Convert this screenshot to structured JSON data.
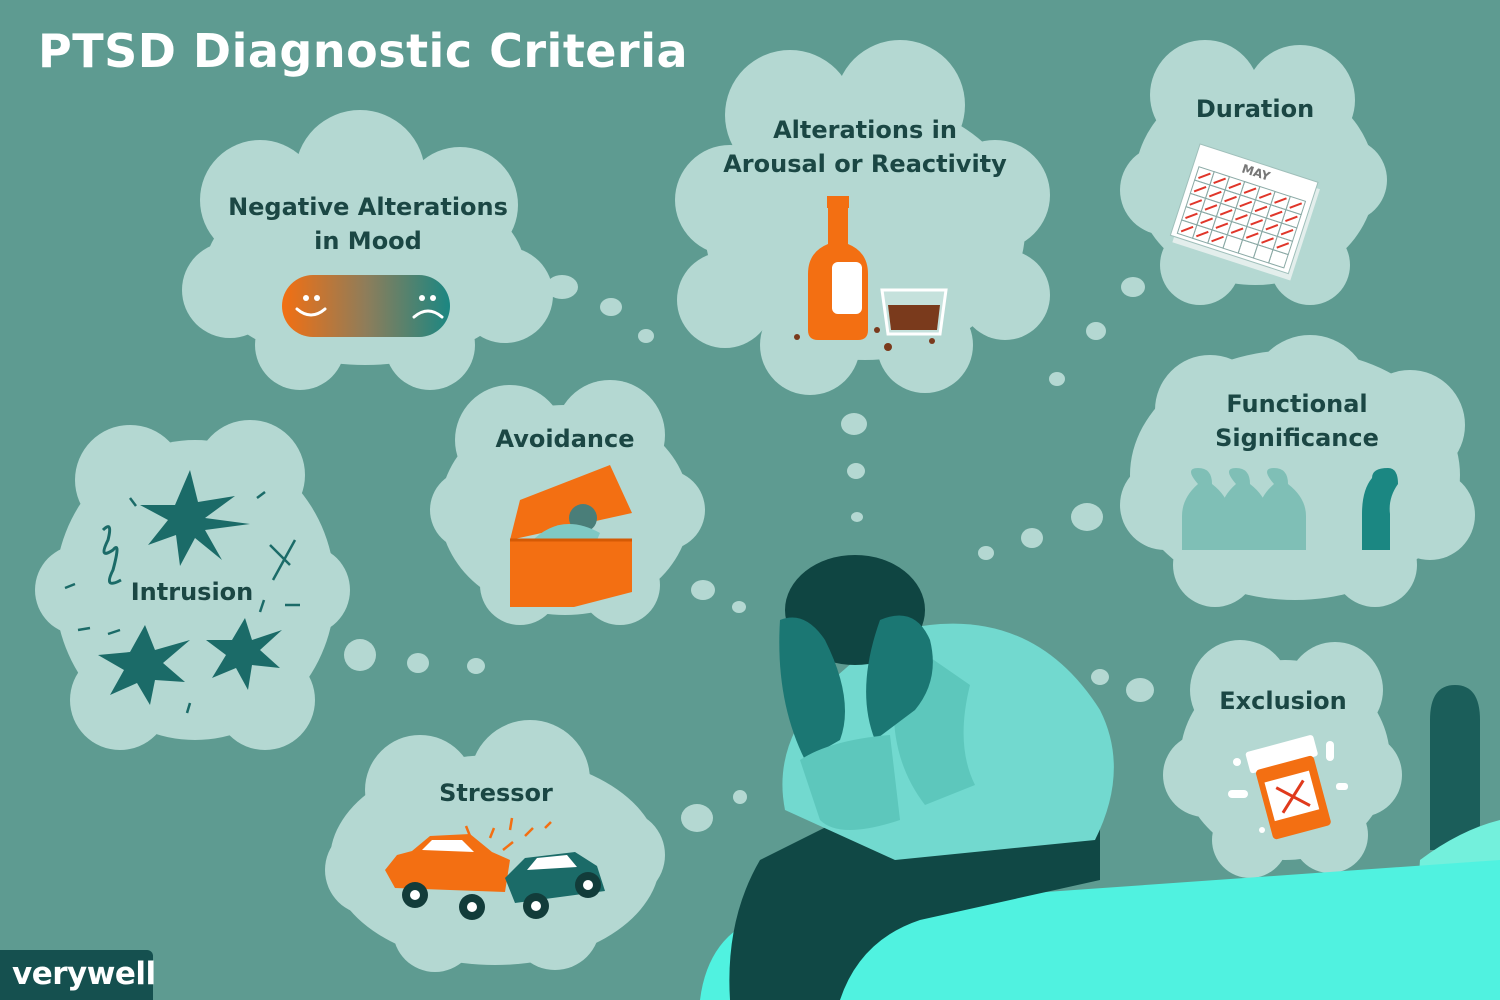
{
  "title": "PTSD Diagnostic Criteria",
  "criteria": [
    {
      "label": "Negative Alterations in Mood",
      "line1": "Negative Alterations",
      "line2": "in Mood",
      "icon": "mood-slider-icon"
    },
    {
      "label": "Alterations in Arousal or Reactivity",
      "line1": "Alterations in",
      "line2": "Arousal or Reactivity",
      "icon": "bottle-and-glass-icon"
    },
    {
      "label": "Duration",
      "icon": "calendar-icon",
      "calendar_month": "MAY"
    },
    {
      "label": "Avoidance",
      "icon": "box-icon"
    },
    {
      "label": "Functional Significance",
      "line1": "Functional",
      "line2": "Significance",
      "icon": "people-icon"
    },
    {
      "label": "Intrusion",
      "icon": "burst-icon"
    },
    {
      "label": "Exclusion",
      "icon": "pill-bottle-icon"
    },
    {
      "label": "Stressor",
      "icon": "car-crash-icon"
    }
  ],
  "logo": {
    "text": "verywell"
  },
  "colors": {
    "background": "#5e9b91",
    "bubble": "#b4d8d2",
    "text": "#1b4744",
    "accent_orange": "#f36f12",
    "accent_teal": "#1b8782"
  }
}
